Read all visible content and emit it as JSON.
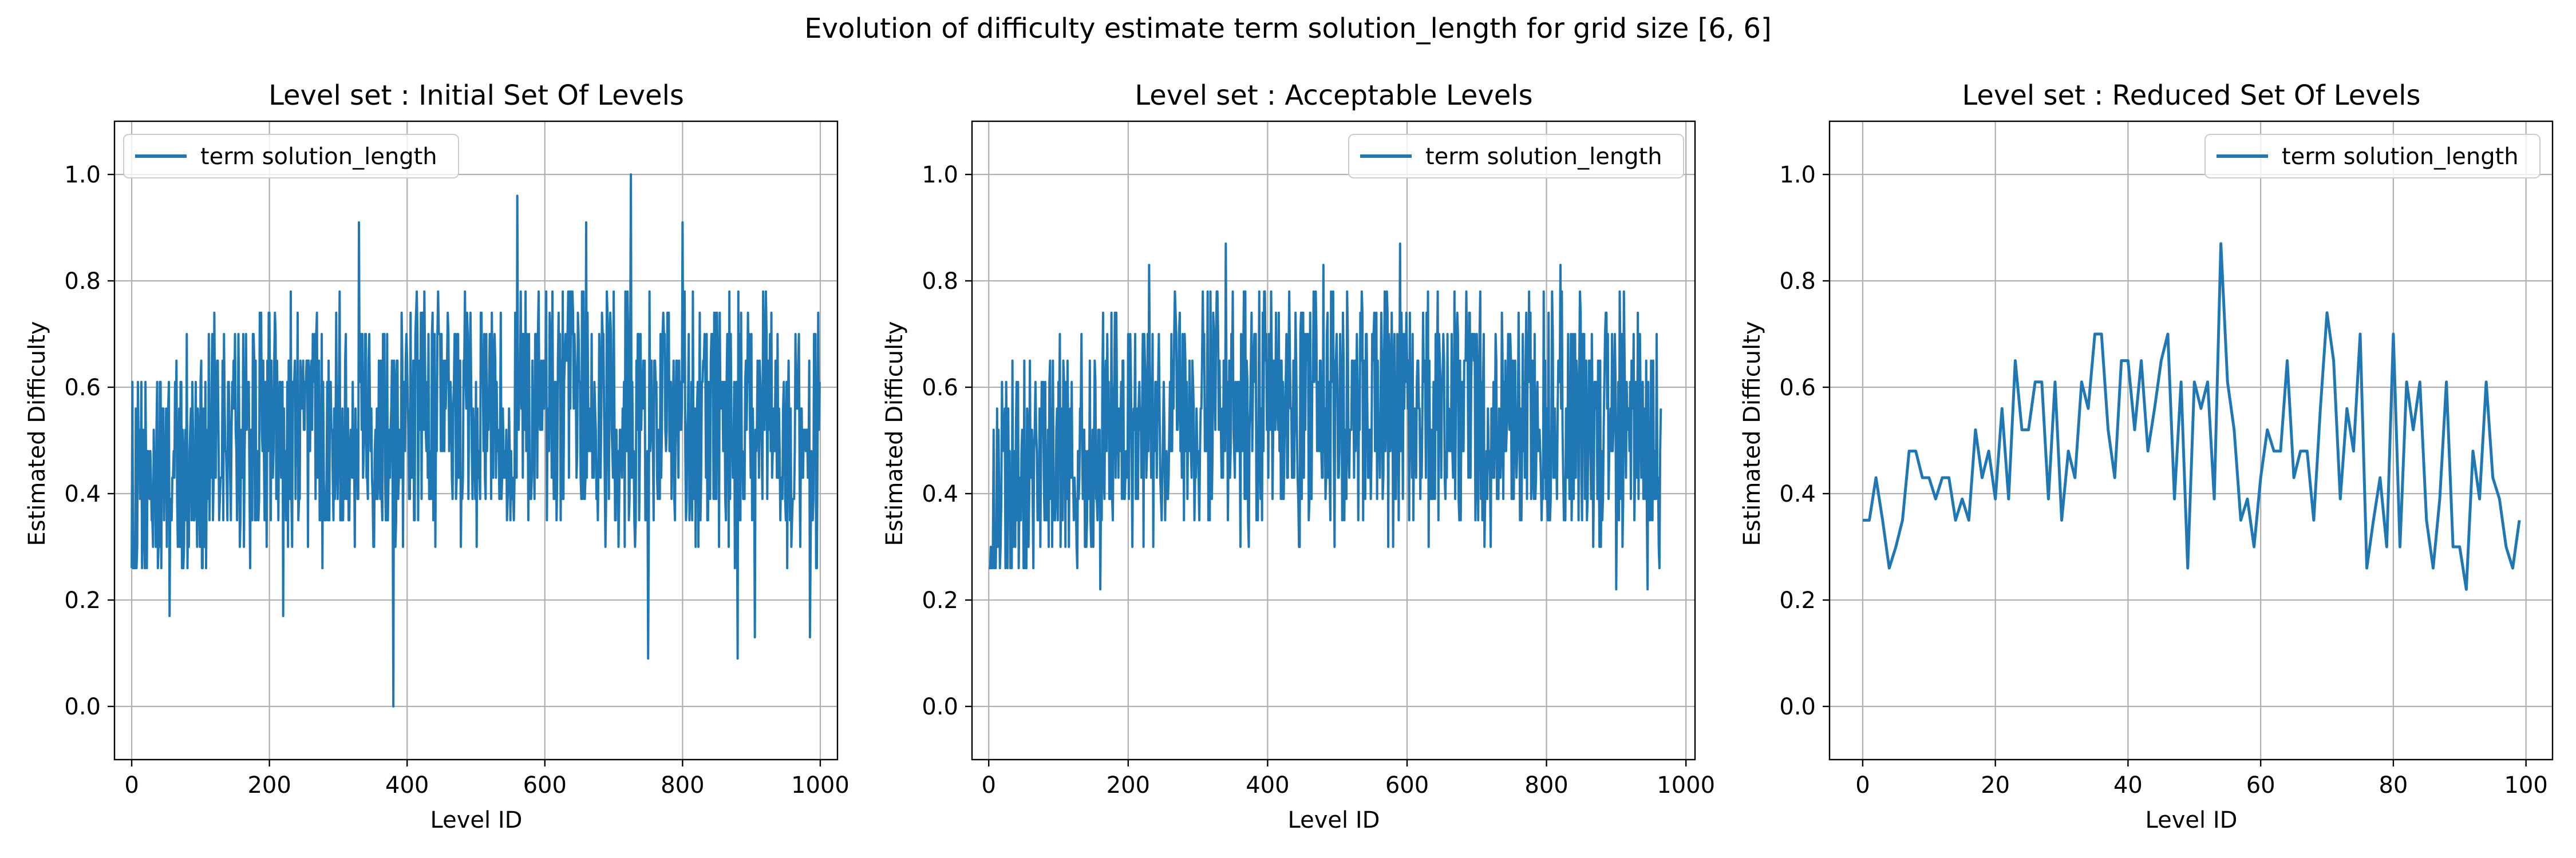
{
  "figure": {
    "suptitle": "Evolution of difficulty estimate term solution_length for grid size [6, 6]",
    "line_color": "#1f77b4",
    "grid_color": "#b0b0b0"
  },
  "chart_data": [
    {
      "type": "line",
      "title": "Level set : Initial Set Of Levels",
      "xlabel": "Level ID",
      "ylabel": "Estimated Difficulty",
      "xlim": [
        -25,
        1025
      ],
      "ylim": [
        -0.1,
        1.1
      ],
      "xticks": [
        0,
        200,
        400,
        600,
        800,
        1000
      ],
      "yticks": [
        0.0,
        0.2,
        0.4,
        0.6,
        0.8,
        1.0
      ],
      "grid": true,
      "legend_position": "upper left",
      "series": [
        {
          "name": "term solution_length",
          "n_points": 1000,
          "baseline_by_segment": [
            [
              0,
              0.36
            ],
            [
              50,
              0.44
            ],
            [
              100,
              0.47
            ],
            [
              200,
              0.53
            ],
            [
              300,
              0.54
            ],
            [
              400,
              0.54
            ],
            [
              500,
              0.55
            ],
            [
              600,
              0.55
            ],
            [
              700,
              0.55
            ],
            [
              800,
              0.54
            ],
            [
              900,
              0.53
            ],
            [
              1000,
              0.5
            ]
          ],
          "peaks": [
            [
              5,
              0.26
            ],
            [
              10,
              0.48
            ],
            [
              55,
              0.17
            ],
            [
              220,
              0.17
            ],
            [
              330,
              0.91
            ],
            [
              380,
              0.0
            ],
            [
              560,
              0.96
            ],
            [
              660,
              0.91
            ],
            [
              725,
              1.0
            ],
            [
              750,
              0.09
            ],
            [
              800,
              0.91
            ],
            [
              880,
              0.09
            ],
            [
              905,
              0.13
            ],
            [
              985,
              0.13
            ],
            [
              995,
              0.26
            ]
          ]
        }
      ]
    },
    {
      "type": "line",
      "title": "Level set : Acceptable Levels",
      "xlabel": "Level ID",
      "ylabel": "Estimated Difficulty",
      "xlim": [
        -24,
        1013
      ],
      "ylim": [
        -0.1,
        1.1
      ],
      "xticks": [
        0,
        200,
        400,
        600,
        800,
        1000
      ],
      "yticks": [
        0.0,
        0.2,
        0.4,
        0.6,
        0.8,
        1.0
      ],
      "grid": true,
      "legend_position": "upper right",
      "series": [
        {
          "name": "term solution_length",
          "n_points": 965,
          "baseline_by_segment": [
            [
              0,
              0.36
            ],
            [
              50,
              0.44
            ],
            [
              100,
              0.47
            ],
            [
              200,
              0.53
            ],
            [
              300,
              0.54
            ],
            [
              400,
              0.54
            ],
            [
              500,
              0.55
            ],
            [
              600,
              0.55
            ],
            [
              700,
              0.55
            ],
            [
              800,
              0.54
            ],
            [
              900,
              0.53
            ],
            [
              965,
              0.5
            ]
          ],
          "peaks": [
            [
              5,
              0.26
            ],
            [
              160,
              0.22
            ],
            [
              230,
              0.83
            ],
            [
              340,
              0.87
            ],
            [
              480,
              0.83
            ],
            [
              590,
              0.87
            ],
            [
              820,
              0.83
            ],
            [
              900,
              0.22
            ],
            [
              945,
              0.22
            ],
            [
              962,
              0.26
            ]
          ]
        }
      ]
    },
    {
      "type": "line",
      "title": "Level set : Reduced Set Of Levels",
      "xlabel": "Level ID",
      "ylabel": "Estimated Difficulty",
      "xlim": [
        -5,
        104
      ],
      "ylim": [
        -0.1,
        1.1
      ],
      "xticks": [
        0,
        20,
        40,
        60,
        80,
        100
      ],
      "yticks": [
        0.0,
        0.2,
        0.4,
        0.6,
        0.8,
        1.0
      ],
      "grid": true,
      "legend_position": "upper right",
      "series": [
        {
          "name": "term solution_length",
          "x": [
            0,
            1,
            2,
            3,
            4,
            5,
            6,
            7,
            8,
            9,
            10,
            11,
            12,
            13,
            14,
            15,
            16,
            17,
            18,
            19,
            20,
            21,
            22,
            23,
            24,
            25,
            26,
            27,
            28,
            29,
            30,
            31,
            32,
            33,
            34,
            35,
            36,
            37,
            38,
            39,
            40,
            41,
            42,
            43,
            44,
            45,
            46,
            47,
            48,
            49,
            50,
            51,
            52,
            53,
            54,
            55,
            56,
            57,
            58,
            59,
            60,
            61,
            62,
            63,
            64,
            65,
            66,
            67,
            68,
            69,
            70,
            71,
            72,
            73,
            74,
            75,
            76,
            77,
            78,
            79,
            80,
            81,
            82,
            83,
            84,
            85,
            86,
            87,
            88,
            89,
            90,
            91,
            92,
            93,
            94,
            95,
            96,
            97,
            98,
            99
          ],
          "y": [
            0.35,
            0.35,
            0.43,
            0.35,
            0.26,
            0.3,
            0.35,
            0.48,
            0.48,
            0.43,
            0.43,
            0.39,
            0.43,
            0.43,
            0.35,
            0.39,
            0.35,
            0.52,
            0.43,
            0.48,
            0.39,
            0.56,
            0.39,
            0.65,
            0.52,
            0.52,
            0.61,
            0.61,
            0.39,
            0.61,
            0.35,
            0.48,
            0.43,
            0.61,
            0.56,
            0.7,
            0.7,
            0.52,
            0.43,
            0.65,
            0.65,
            0.52,
            0.65,
            0.48,
            0.56,
            0.65,
            0.7,
            0.39,
            0.61,
            0.26,
            0.61,
            0.56,
            0.61,
            0.39,
            0.87,
            0.61,
            0.52,
            0.35,
            0.39,
            0.3,
            0.43,
            0.52,
            0.48,
            0.48,
            0.65,
            0.43,
            0.48,
            0.48,
            0.35,
            0.56,
            0.74,
            0.65,
            0.39,
            0.56,
            0.48,
            0.7,
            0.26,
            0.35,
            0.43,
            0.3,
            0.7,
            0.3,
            0.61,
            0.52,
            0.61,
            0.35,
            0.26,
            0.39,
            0.61,
            0.3,
            0.3,
            0.22,
            0.48,
            0.39,
            0.61,
            0.43,
            0.39,
            0.3,
            0.26,
            0.35
          ]
        }
      ]
    }
  ]
}
